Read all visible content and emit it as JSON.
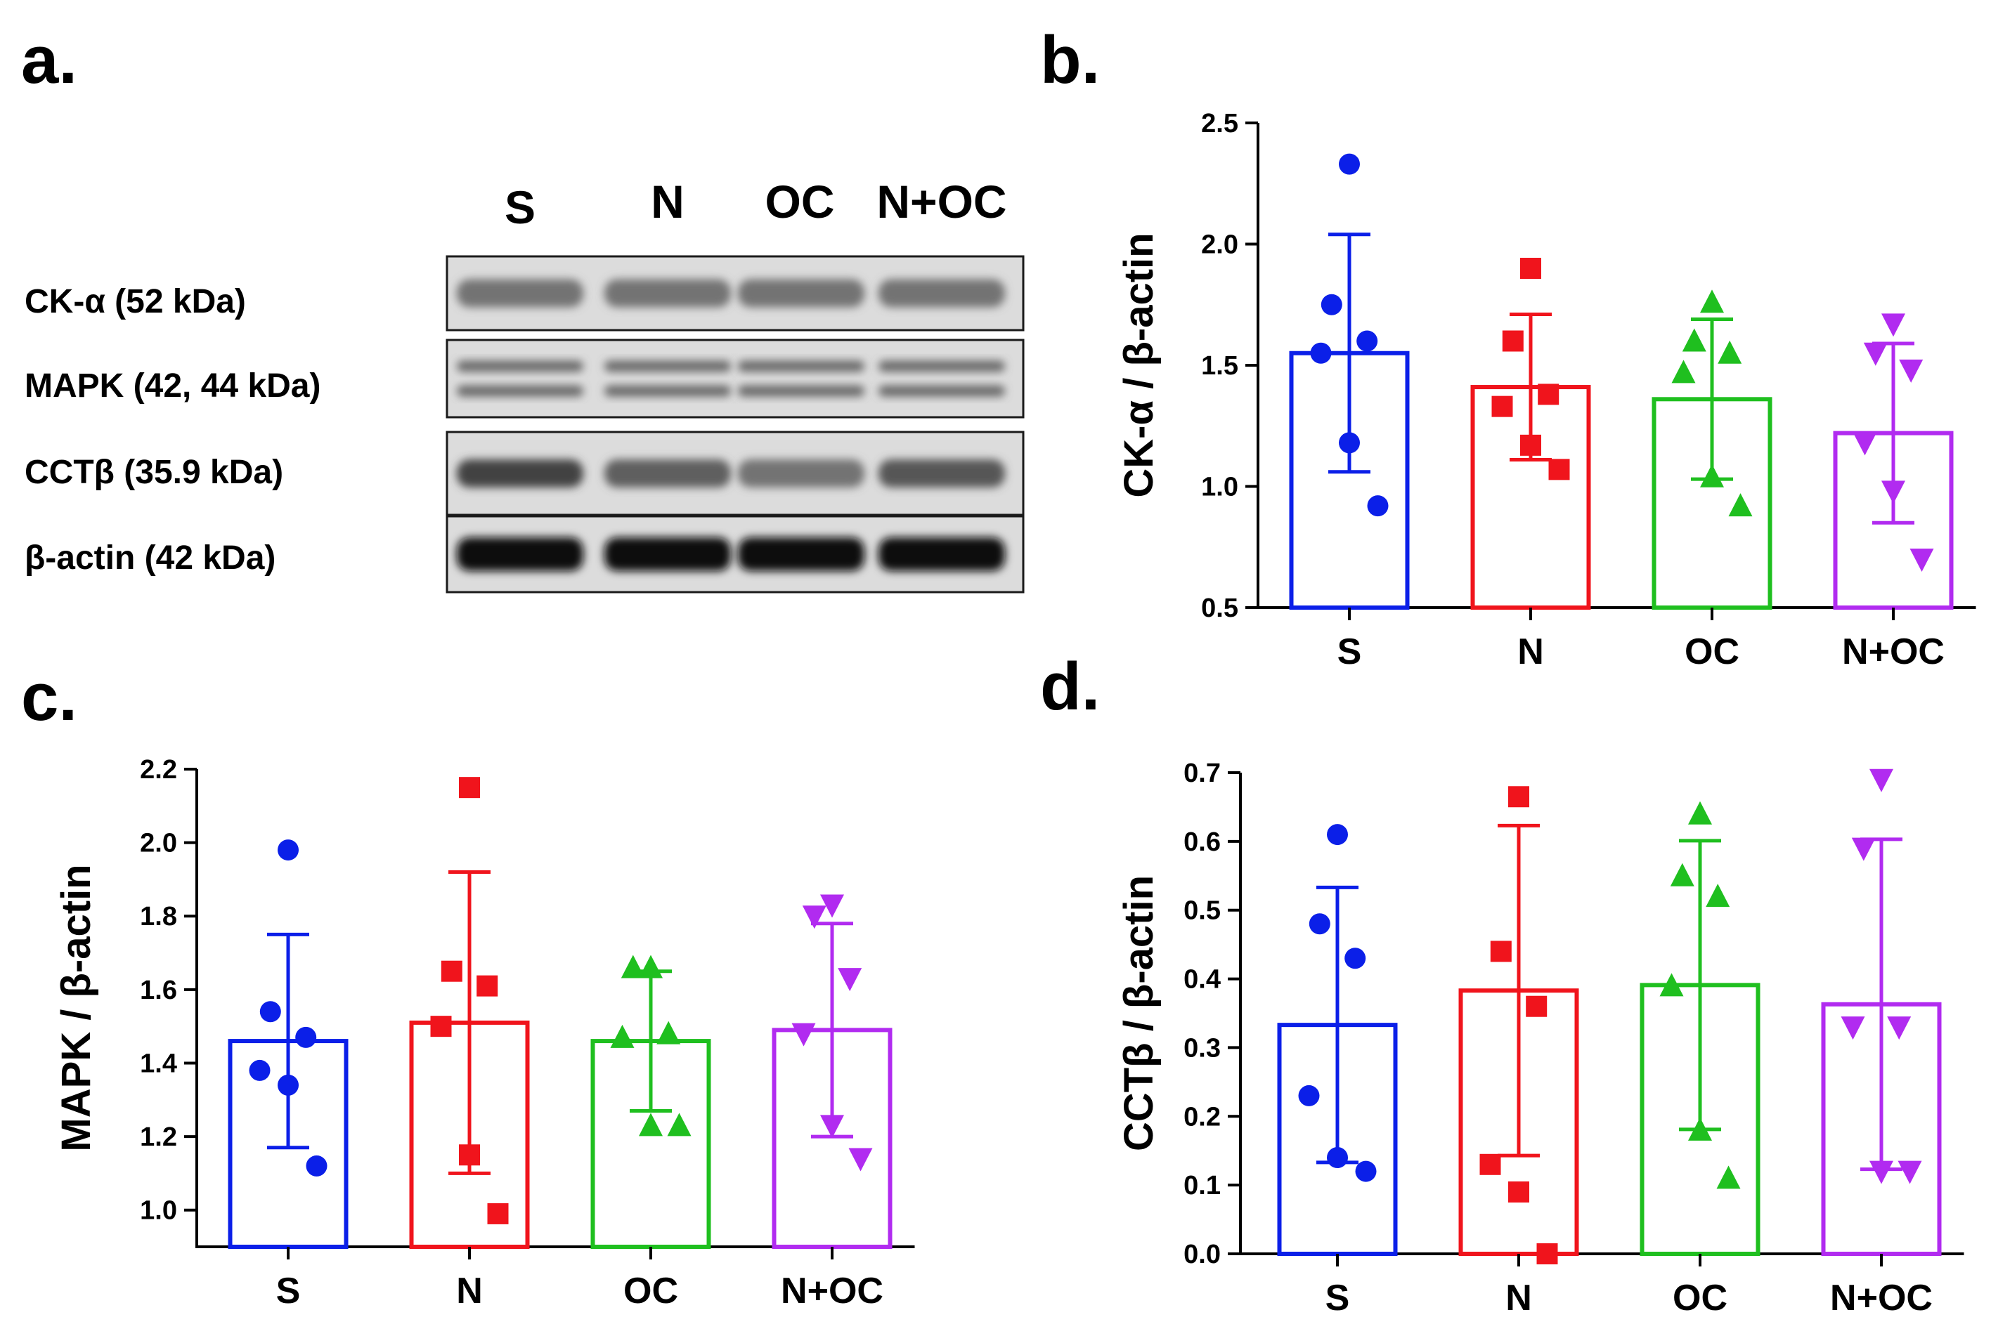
{
  "panels": {
    "a": "a.",
    "b": "b.",
    "c": "c.",
    "d": "d."
  },
  "colors": {
    "S": "#0b1fe8",
    "N": "#f0141c",
    "OC": "#1fbf1f",
    "N+OC": "#b12bf0"
  },
  "blot": {
    "lanes": [
      "S",
      "N",
      "OC",
      "N+OC"
    ],
    "rows": [
      {
        "label": "CK-α (52 kDa)",
        "intensity": [
          0.45,
          0.45,
          0.45,
          0.45
        ]
      },
      {
        "label": "MAPK (42, 44 kDa)",
        "intensity": [
          0.5,
          0.5,
          0.5,
          0.5
        ]
      },
      {
        "label": "CCTβ (35.9 kDa)",
        "intensity": [
          0.7,
          0.55,
          0.45,
          0.6
        ]
      },
      {
        "label": "β-actin (42 kDa)",
        "intensity": [
          1.0,
          1.0,
          1.0,
          1.0
        ]
      }
    ]
  },
  "chart_data": [
    {
      "panel": "b",
      "type": "bar",
      "categories": [
        "S",
        "N",
        "OC",
        "N+OC"
      ],
      "values": [
        1.55,
        1.41,
        1.36,
        1.22
      ],
      "errors": [
        0.49,
        0.3,
        0.33,
        0.37
      ],
      "points": [
        [
          2.33,
          1.75,
          1.6,
          1.55,
          1.18,
          0.92
        ],
        [
          1.9,
          1.6,
          1.38,
          1.33,
          1.17,
          1.07
        ],
        [
          1.76,
          1.6,
          1.55,
          1.47,
          1.04,
          0.92
        ],
        [
          1.67,
          1.55,
          1.48,
          1.18,
          0.98,
          0.7
        ]
      ],
      "markers": [
        "circle",
        "square",
        "triangle-up",
        "triangle-down"
      ],
      "ylabel": "CK-α / β-actin",
      "ylim": [
        0.5,
        2.5
      ],
      "yticks": [
        "0.5",
        "1.0",
        "1.5",
        "2.0",
        "2.5"
      ]
    },
    {
      "panel": "c",
      "type": "bar",
      "categories": [
        "S",
        "N",
        "OC",
        "N+OC"
      ],
      "values": [
        1.46,
        1.51,
        1.46,
        1.49
      ],
      "errors": [
        0.29,
        0.41,
        0.19,
        0.29
      ],
      "points": [
        [
          1.98,
          1.54,
          1.47,
          1.38,
          1.34,
          1.12
        ],
        [
          2.15,
          1.65,
          1.61,
          1.5,
          1.15,
          0.99
        ],
        [
          1.66,
          1.66,
          1.48,
          1.47,
          1.23,
          1.23
        ],
        [
          1.83,
          1.8,
          1.63,
          1.48,
          1.23,
          1.14
        ]
      ],
      "markers": [
        "circle",
        "square",
        "triangle-up",
        "triangle-down"
      ],
      "ylabel": "MAPK / β-actin",
      "ylim": [
        0.9,
        2.2
      ],
      "yticks": [
        "1.0",
        "1.2",
        "1.4",
        "1.6",
        "1.8",
        "2.0",
        "2.2"
      ]
    },
    {
      "panel": "d",
      "type": "bar",
      "categories": [
        "S",
        "N",
        "OC",
        "N+OC"
      ],
      "values": [
        0.333,
        0.383,
        0.391,
        0.363
      ],
      "errors": [
        0.2,
        0.24,
        0.21,
        0.24
      ],
      "points": [
        [
          0.61,
          0.48,
          0.43,
          0.23,
          0.14,
          0.12
        ],
        [
          0.665,
          0.44,
          0.36,
          0.13,
          0.09,
          0.0
        ],
        [
          0.64,
          0.55,
          0.52,
          0.39,
          0.18,
          0.11
        ],
        [
          0.69,
          0.59,
          0.33,
          0.33,
          0.12,
          0.12
        ]
      ],
      "markers": [
        "circle",
        "square",
        "triangle-up",
        "triangle-down"
      ],
      "ylabel": "CCTβ / β-actin",
      "ylim": [
        0.0,
        0.7
      ],
      "yticks": [
        "0.0",
        "0.1",
        "0.2",
        "0.3",
        "0.4",
        "0.5",
        "0.6",
        "0.7"
      ]
    }
  ]
}
